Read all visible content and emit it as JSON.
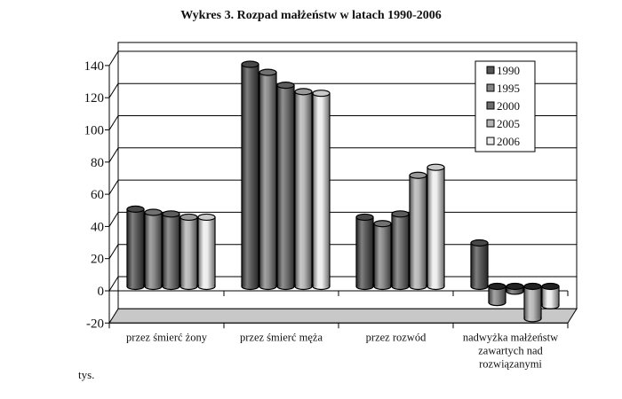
{
  "chart_data": {
    "type": "bar",
    "style": "3d-cylinder",
    "title": "Wykres 3. Rozpad małżeństw w latach 1990-2006",
    "ylabel": "tys.",
    "xlabel": "",
    "ylim": [
      -20,
      140
    ],
    "yticks": [
      140,
      120,
      100,
      80,
      60,
      40,
      20,
      0,
      -20
    ],
    "grid": true,
    "legend_position": "top-right",
    "categories": [
      [
        "przez śmierć żony"
      ],
      [
        "przez śmierć męża"
      ],
      [
        "przez rozwód"
      ],
      [
        "nadwyżka małżeństw",
        "zawartych nad",
        "rozwiązanymi"
      ]
    ],
    "series": [
      {
        "name": "1990",
        "color": "#555555",
        "values": [
          48,
          138,
          43,
          27
        ]
      },
      {
        "name": "1995",
        "color": "#858585",
        "values": [
          46,
          133,
          39,
          -10
        ]
      },
      {
        "name": "2000",
        "color": "#6c6c6c",
        "values": [
          45,
          125,
          45,
          -3
        ]
      },
      {
        "name": "2005",
        "color": "#b4b4b4",
        "values": [
          43,
          121,
          69,
          -20
        ]
      },
      {
        "name": "2006",
        "color": "#ececec",
        "values": [
          43,
          120,
          74,
          -12
        ]
      }
    ]
  }
}
